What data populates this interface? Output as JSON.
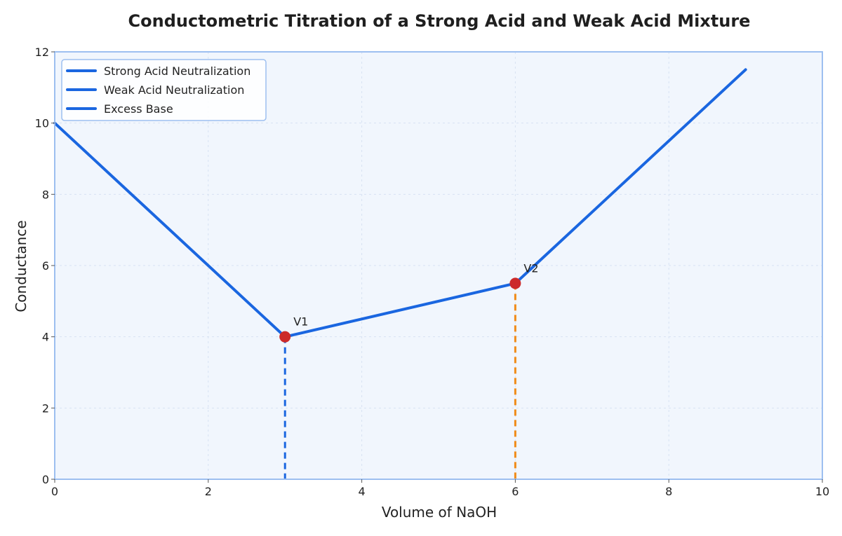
{
  "chart_data": {
    "type": "line",
    "title": "Conductometric Titration of a Strong Acid and Weak Acid Mixture",
    "xlabel": "Volume of NaOH",
    "ylabel": "Conductance",
    "xlim": [
      0,
      10
    ],
    "ylim": [
      0,
      12
    ],
    "x_ticks": [
      0,
      2,
      4,
      6,
      8,
      10
    ],
    "y_ticks": [
      0,
      2,
      4,
      6,
      8,
      10,
      12
    ],
    "grid": true,
    "legend_position": "top-left",
    "series": [
      {
        "name": "Strong Acid Neutralization",
        "color": "#1a66e0",
        "x": [
          0,
          3
        ],
        "y": [
          10,
          4
        ]
      },
      {
        "name": "Weak Acid Neutralization",
        "color": "#1a66e0",
        "x": [
          3,
          6
        ],
        "y": [
          4,
          5.5
        ]
      },
      {
        "name": "Excess Base",
        "color": "#1a66e0",
        "x": [
          6,
          9
        ],
        "y": [
          5.5,
          11.5
        ]
      }
    ],
    "equivalence_points": [
      {
        "label": "V1",
        "x": 3,
        "y": 4,
        "drop_line_color": "#1a66e0"
      },
      {
        "label": "V2",
        "x": 6,
        "y": 5.5,
        "drop_line_color": "#f08c1a"
      }
    ],
    "point_color": "#cc2a2a",
    "plot_background": "#f1f6fd",
    "frame_color": "#9dbff0"
  }
}
